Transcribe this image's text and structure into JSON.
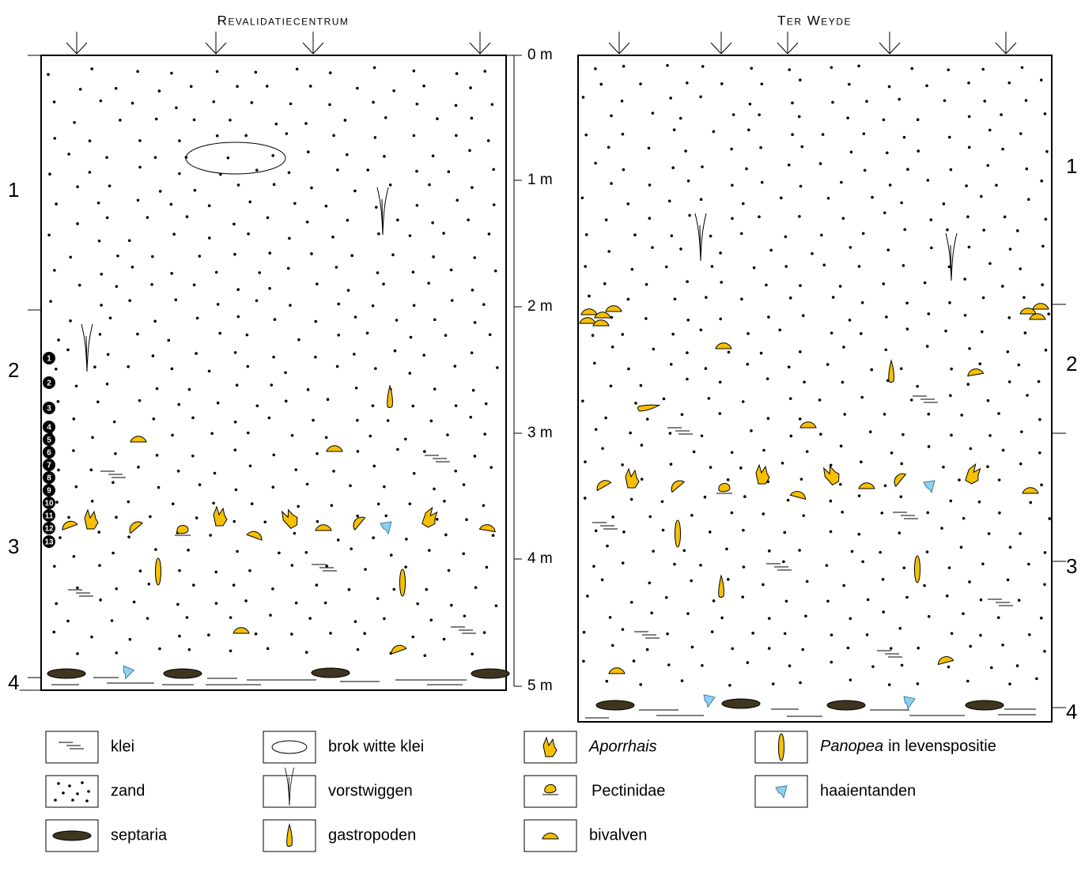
{
  "sections": [
    {
      "title": "Revalidatiecentrum",
      "layers": [
        "1",
        "2",
        "3",
        "4"
      ]
    },
    {
      "title": "Ter Weyde",
      "layers": [
        "1",
        "2",
        "3",
        "4"
      ]
    }
  ],
  "depth_scale": [
    "0 m",
    "1 m",
    "2 m",
    "3 m",
    "4 m",
    "5 m"
  ],
  "samples": [
    "1",
    "2",
    "3",
    "4",
    "5",
    "6",
    "7",
    "8",
    "9",
    "10",
    "11",
    "12",
    "13"
  ],
  "legend": [
    "klei",
    "zand",
    "septaria",
    "brok witte klei",
    "vorstwiggen",
    "gastropoden",
    "Aporrhais",
    "Pectinidae",
    "bivalven",
    {
      "italic": "Panopea",
      "text": "in levenspositie"
    },
    "haaientanden"
  ]
}
